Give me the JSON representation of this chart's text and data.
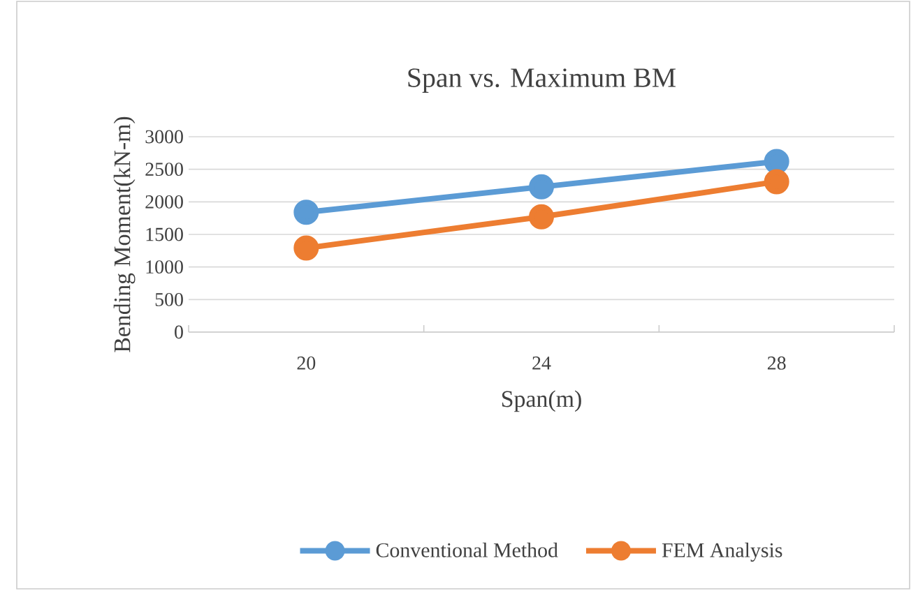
{
  "chart_data": {
    "type": "line",
    "title": "Span vs. Maximum BM",
    "xlabel": "Span(m)",
    "ylabel": "Bending Moment(kN-m)",
    "categories": [
      "20",
      "24",
      "28"
    ],
    "series": [
      {
        "name": "Conventional Method",
        "color": "#5b9bd5",
        "values": [
          1840,
          2230,
          2620
        ]
      },
      {
        "name": "FEM Analysis",
        "color": "#ed7d31",
        "values": [
          1290,
          1770,
          2310
        ]
      }
    ],
    "ylim": [
      0,
      3000
    ],
    "yticks": [
      0,
      500,
      1000,
      1500,
      2000,
      2500,
      3000
    ],
    "grid": "y",
    "legend": "bottom",
    "marker": "circle",
    "line_style": "solid"
  }
}
